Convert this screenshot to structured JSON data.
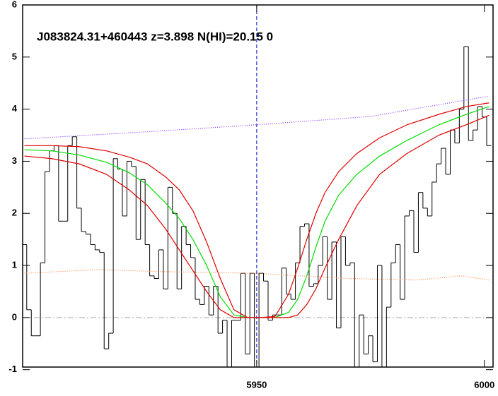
{
  "chart_data": {
    "type": "line",
    "annotation": "J083824.31+460443 z=3.898 N(HI)=20.15 0",
    "xlim": [
      5898.6,
      6001.9
    ],
    "xticks": [
      5950,
      6000
    ],
    "ylim": [
      -0.95,
      6.0
    ],
    "yticks": [
      -1,
      0,
      1,
      2,
      3,
      4,
      5,
      6
    ],
    "hline": 0,
    "vline": 5950,
    "series": [
      {
        "style": "steps",
        "color": "#000000",
        "x_start": 5899,
        "x_step": 1,
        "values": [
          1.4,
          0.15,
          -0.35,
          -0.35,
          1.05,
          2.8,
          3.2,
          3.3,
          1.85,
          1.85,
          3.3,
          3.47,
          2.1,
          1.65,
          1.6,
          1.4,
          1.3,
          1.25,
          -0.6,
          -0.3,
          3.05,
          2.85,
          1.95,
          3.0,
          2.9,
          1.5,
          2.65,
          1.4,
          0.8,
          0.75,
          1.3,
          0.55,
          2.5,
          2.0,
          0.55,
          1.75,
          1.4,
          1.15,
          0.35,
          0.25,
          0.6,
          0.05,
          0.6,
          -0.3,
          -0.05,
          -1.0,
          -0.05,
          -0.05,
          0.85,
          -0.7,
          0.85,
          -1.0,
          0.85,
          0.7,
          -0.05,
          0.05,
          0.05,
          0.95,
          0.45,
          0.35,
          1.05,
          1.75,
          1.8,
          0.6,
          0.65,
          1.0,
          1.55,
          0.35,
          1.45,
          -0.2,
          1.55,
          1.0,
          1.05,
          -0.95,
          0.05,
          -0.7,
          -0.35,
          -0.85,
          1.0,
          -0.95,
          0.2,
          1.05,
          1.4,
          0.35,
          1.95,
          2.05,
          1.25,
          2.4,
          2.1,
          1.95,
          2.6,
          2.95,
          3.25,
          2.75,
          3.6,
          3.35,
          4.0,
          5.2,
          3.4,
          3.6,
          4.05,
          3.85,
          3.3
        ]
      },
      {
        "style": "solid",
        "color": "#00dd00",
        "x": [
          5899,
          5905,
          5911,
          5917,
          5922,
          5926,
          5930,
          5933,
          5936,
          5939,
          5942,
          5945,
          5948,
          5951,
          5954,
          5957,
          5959,
          5961,
          5963,
          5965,
          5968,
          5972,
          5977,
          5983,
          5990,
          5996,
          6001
        ],
        "values": [
          3.22,
          3.2,
          3.12,
          2.98,
          2.78,
          2.55,
          2.2,
          1.9,
          1.5,
          1.0,
          0.4,
          0.05,
          0.0,
          0.0,
          0.0,
          0.1,
          0.35,
          0.8,
          1.35,
          1.85,
          2.35,
          2.75,
          3.1,
          3.4,
          3.7,
          3.9,
          4.05
        ]
      },
      {
        "style": "solid",
        "color": "#dd0000",
        "x": [
          5899,
          5905,
          5911,
          5917,
          5922,
          5926,
          5930,
          5933,
          5936,
          5939,
          5942,
          5945,
          5948,
          5951,
          5954,
          5957,
          5959,
          5961,
          5963,
          5965,
          5968,
          5972,
          5977,
          5983,
          5990,
          5996,
          6001
        ],
        "values": [
          3.3,
          3.3,
          3.28,
          3.2,
          3.08,
          2.95,
          2.7,
          2.45,
          2.05,
          1.45,
          0.75,
          0.15,
          0.0,
          0.0,
          0.02,
          0.45,
          0.95,
          1.5,
          2.0,
          2.4,
          2.8,
          3.15,
          3.45,
          3.7,
          3.9,
          4.05,
          4.12
        ]
      },
      {
        "style": "solid",
        "color": "#dd0000",
        "x": [
          5899,
          5905,
          5911,
          5917,
          5922,
          5926,
          5930,
          5933,
          5936,
          5939,
          5942,
          5945,
          5948,
          5951,
          5954,
          5957,
          5959,
          5961,
          5963,
          5965,
          5968,
          5972,
          5977,
          5983,
          5990,
          5996,
          6001
        ],
        "values": [
          3.1,
          3.05,
          2.95,
          2.75,
          2.45,
          2.15,
          1.7,
          1.3,
          0.9,
          0.5,
          0.15,
          0.0,
          0.0,
          0.0,
          0.0,
          0.0,
          0.05,
          0.25,
          0.55,
          0.95,
          1.5,
          2.15,
          2.75,
          3.15,
          3.5,
          3.7,
          3.88
        ]
      },
      {
        "style": "dotted",
        "color": "#8833ff",
        "x": [
          5899,
          5925,
          5950,
          5975,
          6001
        ],
        "values": [
          3.43,
          3.56,
          3.7,
          3.86,
          4.25
        ]
      },
      {
        "style": "dotted",
        "color": "#ff8844",
        "x": [
          5899,
          5915,
          5930,
          5950,
          5970,
          5985,
          5995,
          6001
        ],
        "values": [
          0.85,
          0.92,
          0.88,
          0.85,
          0.75,
          0.72,
          0.8,
          0.72
        ]
      }
    ]
  }
}
